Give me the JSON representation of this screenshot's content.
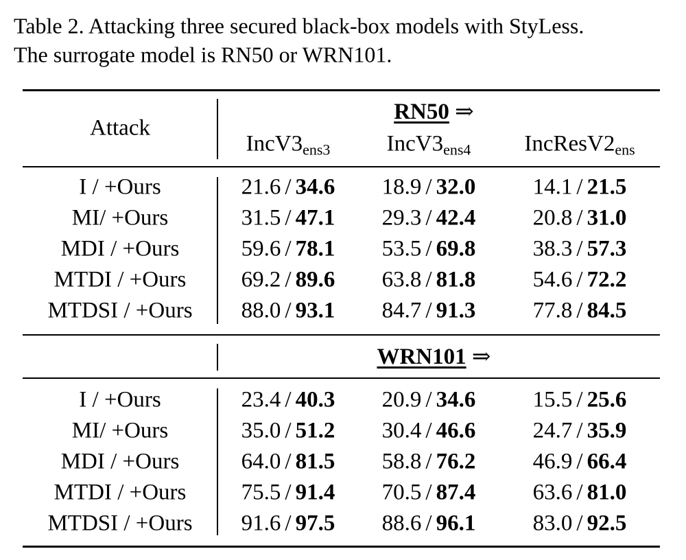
{
  "caption": [
    "Table 2. Attacking three secured black-box models with StyLess.",
    "The surrogate model is RN50 or WRN101."
  ],
  "table": {
    "attack_header": "Attack",
    "columns": [
      {
        "name": "IncV3",
        "sub": "ens3"
      },
      {
        "name": "IncV3",
        "sub": "ens4"
      },
      {
        "name": "IncResV2",
        "sub": "ens"
      }
    ],
    "separator": "/",
    "groups": [
      {
        "surrogate": "RN50",
        "arrow": "⇒",
        "rows": [
          {
            "attack": "I / +Ours",
            "cells": [
              [
                "21.6",
                "34.6"
              ],
              [
                "18.9",
                "32.0"
              ],
              [
                "14.1",
                "21.5"
              ]
            ]
          },
          {
            "attack": "MI/ +Ours",
            "cells": [
              [
                "31.5",
                "47.1"
              ],
              [
                "29.3",
                "42.4"
              ],
              [
                "20.8",
                "31.0"
              ]
            ]
          },
          {
            "attack": "MDI / +Ours",
            "cells": [
              [
                "59.6",
                "78.1"
              ],
              [
                "53.5",
                "69.8"
              ],
              [
                "38.3",
                "57.3"
              ]
            ]
          },
          {
            "attack": "MTDI / +Ours",
            "cells": [
              [
                "69.2",
                "89.6"
              ],
              [
                "63.8",
                "81.8"
              ],
              [
                "54.6",
                "72.2"
              ]
            ]
          },
          {
            "attack": "MTDSI / +Ours",
            "cells": [
              [
                "88.0",
                "93.1"
              ],
              [
                "84.7",
                "91.3"
              ],
              [
                "77.8",
                "84.5"
              ]
            ]
          }
        ]
      },
      {
        "surrogate": "WRN101",
        "arrow": "⇒",
        "rows": [
          {
            "attack": "I / +Ours",
            "cells": [
              [
                "23.4",
                "40.3"
              ],
              [
                "20.9",
                "34.6"
              ],
              [
                "15.5",
                "25.6"
              ]
            ]
          },
          {
            "attack": "MI/ +Ours",
            "cells": [
              [
                "35.0",
                "51.2"
              ],
              [
                "30.4",
                "46.6"
              ],
              [
                "24.7",
                "35.9"
              ]
            ]
          },
          {
            "attack": "MDI / +Ours",
            "cells": [
              [
                "64.0",
                "81.5"
              ],
              [
                "58.8",
                "76.2"
              ],
              [
                "46.9",
                "66.4"
              ]
            ]
          },
          {
            "attack": "MTDI / +Ours",
            "cells": [
              [
                "75.5",
                "91.4"
              ],
              [
                "70.5",
                "87.4"
              ],
              [
                "63.6",
                "81.0"
              ]
            ]
          },
          {
            "attack": "MTDSI / +Ours",
            "cells": [
              [
                "91.6",
                "97.5"
              ],
              [
                "88.6",
                "96.1"
              ],
              [
                "83.0",
                "92.5"
              ]
            ]
          }
        ]
      }
    ]
  }
}
